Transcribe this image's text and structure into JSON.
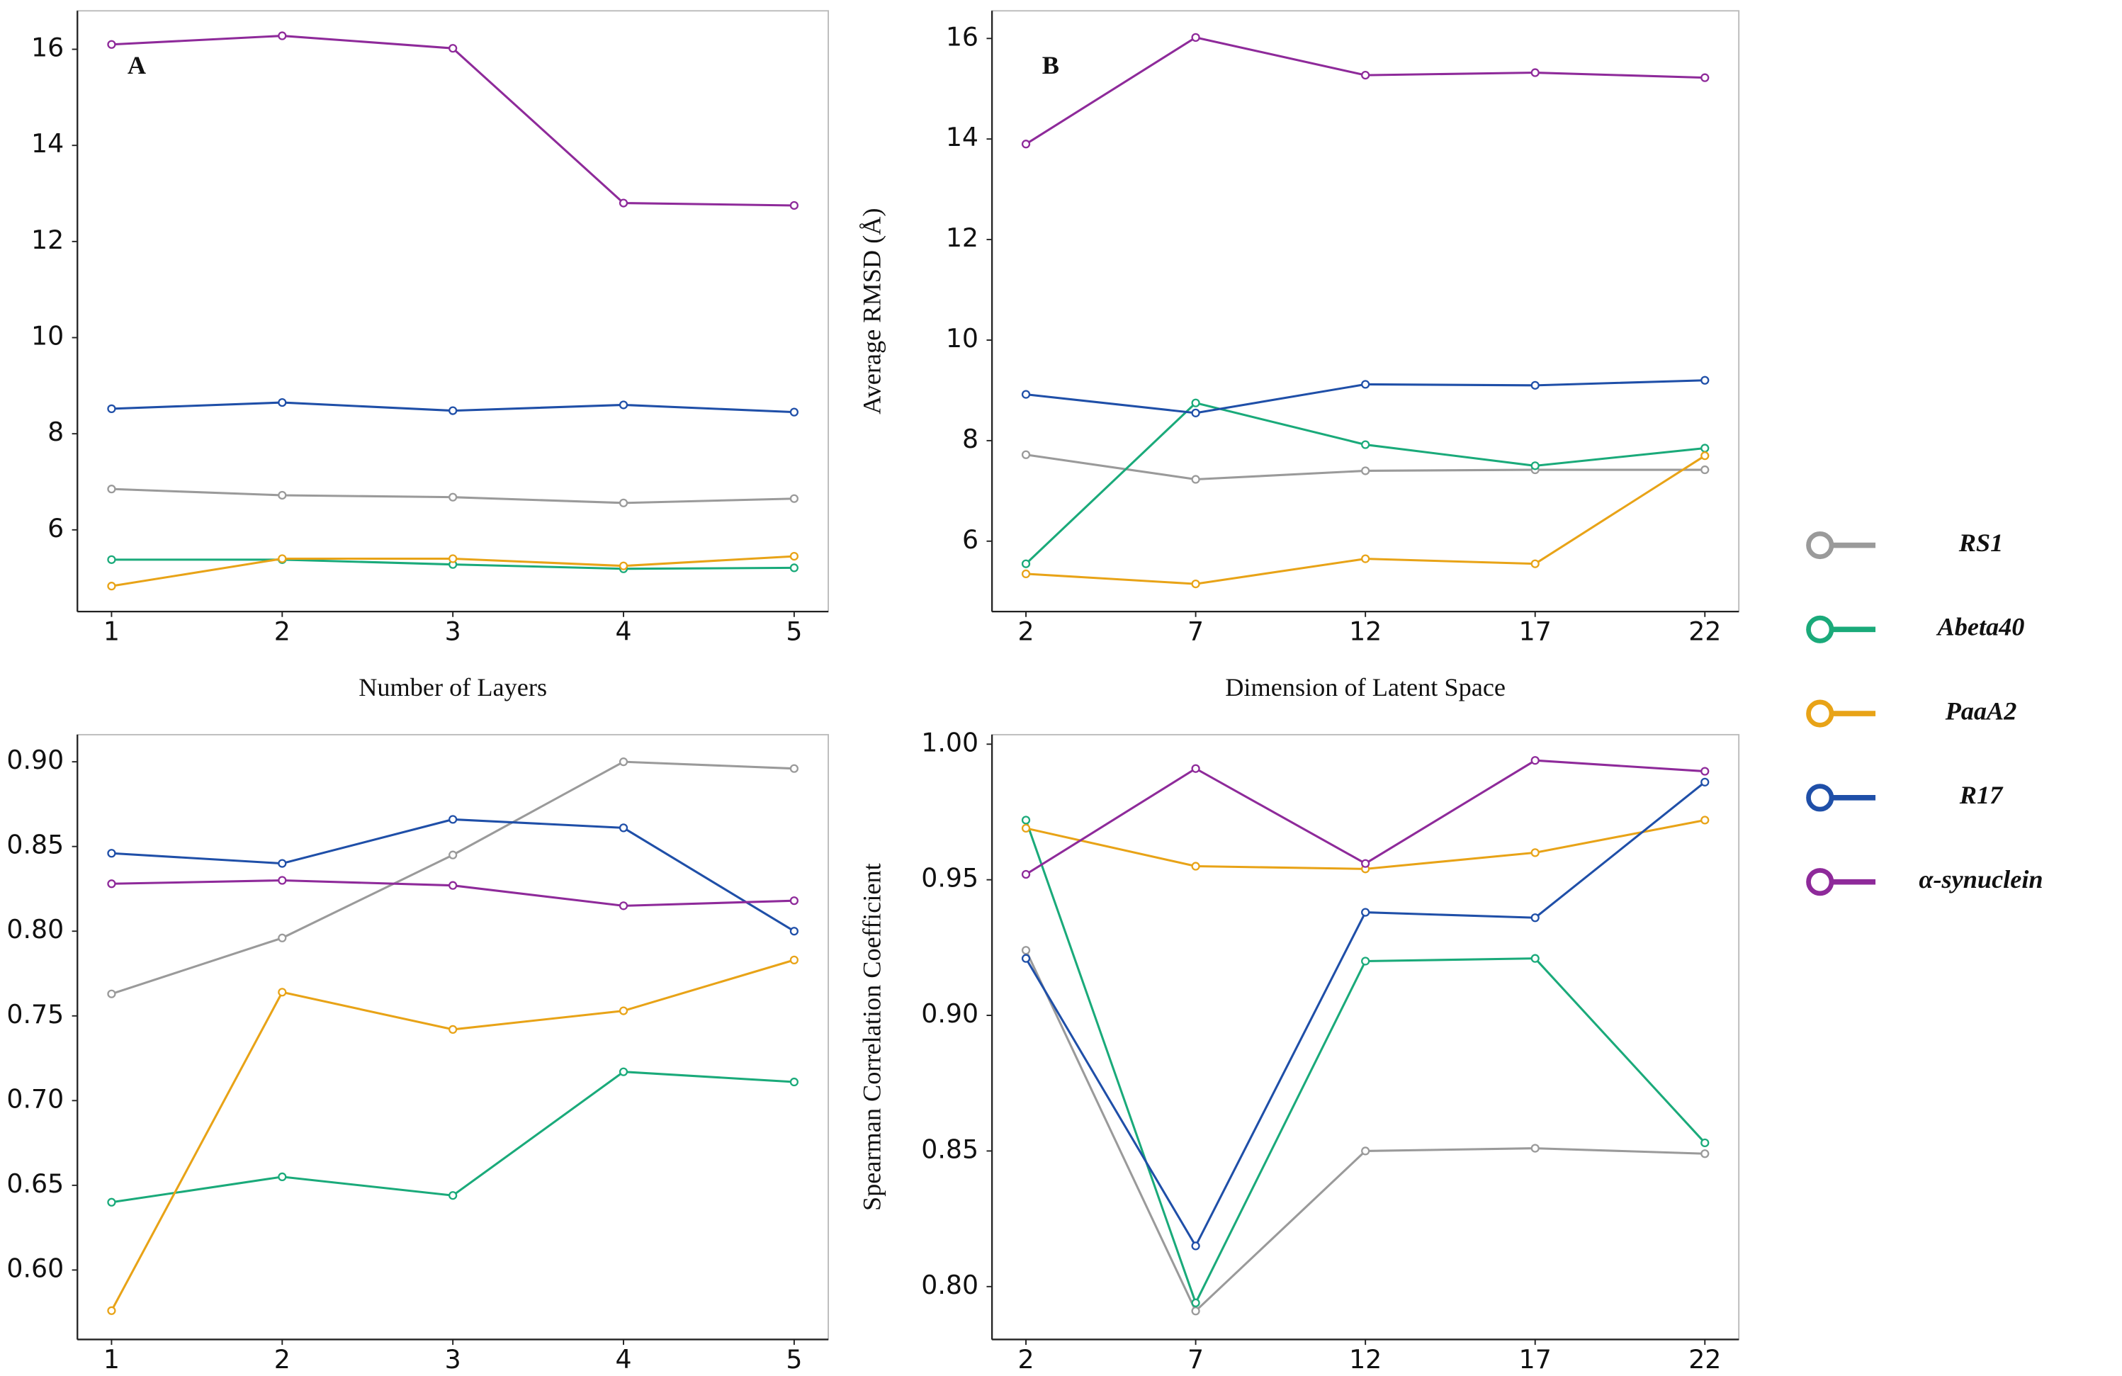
{
  "chart_data": [
    {
      "type": "line",
      "panel_label": "A",
      "xlabel": "Number of Layers",
      "x": [
        1,
        2,
        3,
        4,
        5
      ],
      "xlim": [
        0.8,
        5.2
      ],
      "xticks": [
        1,
        2,
        3,
        4,
        5
      ],
      "ylim": [
        4.3,
        16.8
      ],
      "yticks": [
        6,
        8,
        10,
        12,
        14,
        16
      ],
      "series": [
        {
          "name": "RS1",
          "color": "#9a9a9a",
          "values": [
            6.85,
            6.72,
            6.68,
            6.56,
            6.65
          ]
        },
        {
          "name": "Abeta40",
          "color": "#1aaa7a",
          "values": [
            5.38,
            5.38,
            5.28,
            5.19,
            5.21
          ]
        },
        {
          "name": "PaaA2",
          "color": "#e8a317",
          "values": [
            4.83,
            5.4,
            5.4,
            5.25,
            5.45
          ]
        },
        {
          "name": "R17",
          "color": "#1f4fa8",
          "values": [
            8.52,
            8.65,
            8.48,
            8.6,
            8.45
          ]
        },
        {
          "name": "α-synuclein",
          "color": "#8e2a9a",
          "values": [
            16.1,
            16.28,
            16.02,
            12.8,
            12.75
          ]
        }
      ]
    },
    {
      "type": "line",
      "panel_label": "B",
      "xlabel": "Dimension of Latent Space",
      "ylabel": "Average RMSD (Å)",
      "x": [
        2,
        7,
        12,
        17,
        22
      ],
      "xlim": [
        1,
        23
      ],
      "xticks": [
        2,
        7,
        12,
        17,
        22
      ],
      "ylim": [
        4.6,
        16.55
      ],
      "yticks": [
        6,
        8,
        10,
        12,
        14,
        16
      ],
      "series": [
        {
          "name": "RS1",
          "color": "#9a9a9a",
          "values": [
            7.72,
            7.23,
            7.4,
            7.42,
            7.42
          ]
        },
        {
          "name": "Abeta40",
          "color": "#1aaa7a",
          "values": [
            5.55,
            8.75,
            7.92,
            7.5,
            7.85
          ]
        },
        {
          "name": "PaaA2",
          "color": "#e8a317",
          "values": [
            5.35,
            5.15,
            5.65,
            5.55,
            7.7
          ]
        },
        {
          "name": "R17",
          "color": "#1f4fa8",
          "values": [
            8.92,
            8.55,
            9.12,
            9.1,
            9.2
          ]
        },
        {
          "name": "α-synuclein",
          "color": "#8e2a9a",
          "values": [
            13.9,
            16.02,
            15.27,
            15.32,
            15.22
          ]
        }
      ]
    },
    {
      "type": "line",
      "x": [
        1,
        2,
        3,
        4,
        5
      ],
      "xlim": [
        0.8,
        5.2
      ],
      "xticks": [
        1,
        2,
        3,
        4,
        5
      ],
      "ylim": [
        0.559,
        0.916
      ],
      "yticks": [
        {
          "value": 0.6,
          "label": "0.60"
        },
        {
          "value": 0.65,
          "label": "0.65"
        },
        {
          "value": 0.7,
          "label": "0.70"
        },
        {
          "value": 0.75,
          "label": "0.75"
        },
        {
          "value": 0.8,
          "label": "0.80"
        },
        {
          "value": 0.85,
          "label": "0.85"
        },
        {
          "value": 0.9,
          "label": "0.90"
        }
      ],
      "series": [
        {
          "name": "RS1",
          "color": "#9a9a9a",
          "values": [
            0.763,
            0.796,
            0.845,
            0.9,
            0.896
          ]
        },
        {
          "name": "Abeta40",
          "color": "#1aaa7a",
          "values": [
            0.64,
            0.655,
            0.644,
            0.717,
            0.711
          ]
        },
        {
          "name": "PaaA2",
          "color": "#e8a317",
          "values": [
            0.576,
            0.764,
            0.742,
            0.753,
            0.783
          ]
        },
        {
          "name": "R17",
          "color": "#1f4fa8",
          "values": [
            0.846,
            0.84,
            0.866,
            0.861,
            0.8
          ]
        },
        {
          "name": "α-synuclein",
          "color": "#8e2a9a",
          "values": [
            0.828,
            0.83,
            0.827,
            0.815,
            0.818
          ]
        }
      ]
    },
    {
      "type": "line",
      "ylabel": "Spearman Correlation Coefficient",
      "x": [
        2,
        7,
        12,
        17,
        22
      ],
      "xlim": [
        1,
        23
      ],
      "xticks": [
        2,
        7,
        12,
        17,
        22
      ],
      "ylim": [
        0.7805,
        1.0035
      ],
      "yticks": [
        {
          "value": 0.8,
          "label": "0.80"
        },
        {
          "value": 0.85,
          "label": "0.85"
        },
        {
          "value": 0.9,
          "label": "0.90"
        },
        {
          "value": 0.95,
          "label": "0.95"
        },
        {
          "value": 1.0,
          "label": "1.00"
        }
      ],
      "series": [
        {
          "name": "RS1",
          "color": "#9a9a9a",
          "values": [
            0.924,
            0.791,
            0.85,
            0.851,
            0.849
          ]
        },
        {
          "name": "Abeta40",
          "color": "#1aaa7a",
          "values": [
            0.972,
            0.794,
            0.92,
            0.921,
            0.853
          ]
        },
        {
          "name": "PaaA2",
          "color": "#e8a317",
          "values": [
            0.969,
            0.955,
            0.954,
            0.96,
            0.972
          ]
        },
        {
          "name": "R17",
          "color": "#1f4fa8",
          "values": [
            0.921,
            0.815,
            0.938,
            0.936,
            0.986
          ]
        },
        {
          "name": "α-synuclein",
          "color": "#8e2a9a",
          "values": [
            0.952,
            0.991,
            0.956,
            0.994,
            0.99
          ]
        }
      ]
    }
  ]
}
